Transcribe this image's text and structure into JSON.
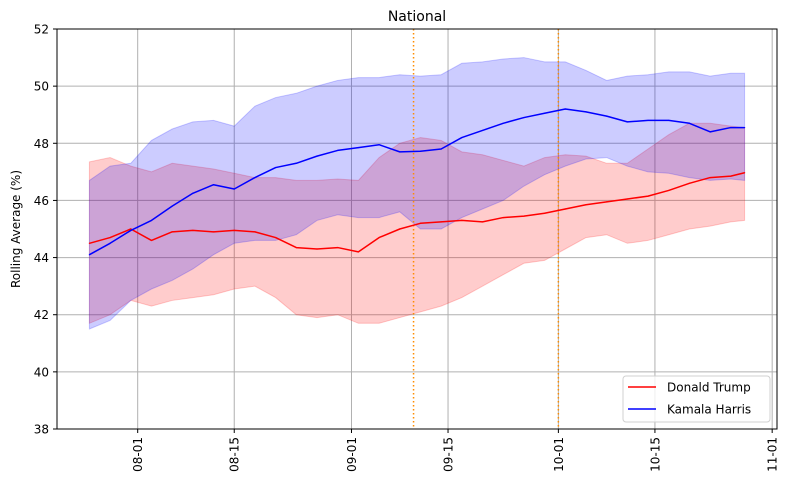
{
  "chart_data": {
    "type": "line",
    "title": "National",
    "xlabel": "",
    "ylabel": "Rolling Average (%)",
    "ylim": [
      38,
      52
    ],
    "yticks": [
      38,
      40,
      42,
      44,
      46,
      48,
      50,
      52
    ],
    "x_unit": "days since 08-01",
    "xlim": [
      -11.7,
      92.7
    ],
    "xticks": [
      {
        "day": 0,
        "label": "08-01"
      },
      {
        "day": 14,
        "label": "08-15"
      },
      {
        "day": 31,
        "label": "09-01"
      },
      {
        "day": 45,
        "label": "09-15"
      },
      {
        "day": 61,
        "label": "10-01"
      },
      {
        "day": 75,
        "label": "10-15"
      },
      {
        "day": 92,
        "label": "11-01"
      }
    ],
    "grid": true,
    "legend_position": "lower-right",
    "vlines": [
      {
        "day": 40,
        "style": "dotted",
        "color": "#ff8c00"
      },
      {
        "day": 61,
        "style": "dotted",
        "color": "#ff8c00"
      }
    ],
    "x": [
      -7,
      -4,
      -1,
      2,
      5,
      8,
      11,
      14,
      17,
      20,
      23,
      26,
      29,
      32,
      35,
      38,
      41,
      44,
      47,
      50,
      53,
      56,
      59,
      62,
      65,
      68,
      71,
      74,
      77,
      80,
      83,
      86,
      88
    ],
    "series": [
      {
        "name": "Donald Trump",
        "color": "#ff0000",
        "band_color": "#ff0000",
        "values": [
          44.5,
          44.7,
          45.0,
          44.6,
          44.9,
          44.95,
          44.9,
          44.95,
          44.9,
          44.7,
          44.35,
          44.3,
          44.35,
          44.2,
          44.7,
          45.0,
          45.2,
          45.25,
          45.3,
          45.25,
          45.4,
          45.45,
          45.55,
          45.7,
          45.85,
          45.95,
          46.05,
          46.15,
          46.35,
          46.6,
          46.8,
          46.85,
          46.97
        ],
        "upper": [
          47.35,
          47.5,
          47.2,
          47.0,
          47.3,
          47.2,
          47.1,
          46.95,
          46.8,
          46.8,
          46.7,
          46.7,
          46.75,
          46.7,
          47.5,
          48.0,
          48.2,
          48.1,
          47.7,
          47.6,
          47.4,
          47.2,
          47.5,
          47.6,
          47.55,
          47.3,
          47.3,
          47.8,
          48.3,
          48.7,
          48.7,
          48.6,
          48.55
        ],
        "lower": [
          41.7,
          42.0,
          42.5,
          42.3,
          42.5,
          42.6,
          42.7,
          42.9,
          43.0,
          42.6,
          42.0,
          41.9,
          42.0,
          41.7,
          41.7,
          41.9,
          42.1,
          42.3,
          42.6,
          43.0,
          43.4,
          43.8,
          43.9,
          44.3,
          44.7,
          44.8,
          44.5,
          44.6,
          44.8,
          45.0,
          45.1,
          45.25,
          45.3
        ]
      },
      {
        "name": "Kamala Harris",
        "color": "#0000ff",
        "band_color": "#0000ff",
        "values": [
          44.1,
          44.5,
          44.95,
          45.3,
          45.8,
          46.25,
          46.55,
          46.4,
          46.8,
          47.15,
          47.3,
          47.55,
          47.75,
          47.85,
          47.95,
          47.7,
          47.72,
          47.8,
          48.2,
          48.45,
          48.7,
          48.9,
          49.05,
          49.2,
          49.1,
          48.95,
          48.75,
          48.8,
          48.8,
          48.7,
          48.4,
          48.55,
          48.55
        ],
        "upper": [
          46.7,
          47.2,
          47.3,
          48.1,
          48.5,
          48.75,
          48.8,
          48.6,
          49.3,
          49.6,
          49.75,
          50.0,
          50.2,
          50.3,
          50.3,
          50.4,
          50.35,
          50.4,
          50.8,
          50.85,
          50.95,
          51.0,
          50.85,
          50.85,
          50.55,
          50.2,
          50.35,
          50.4,
          50.5,
          50.5,
          50.35,
          50.45,
          50.45
        ],
        "lower": [
          41.5,
          41.8,
          42.5,
          42.9,
          43.2,
          43.6,
          44.1,
          44.5,
          44.6,
          44.6,
          44.8,
          45.3,
          45.5,
          45.4,
          45.4,
          45.6,
          45.0,
          45.0,
          45.4,
          45.7,
          46.0,
          46.5,
          46.9,
          47.2,
          47.45,
          47.5,
          47.2,
          47.0,
          46.95,
          46.8,
          46.7,
          46.75,
          46.7
        ]
      }
    ]
  }
}
